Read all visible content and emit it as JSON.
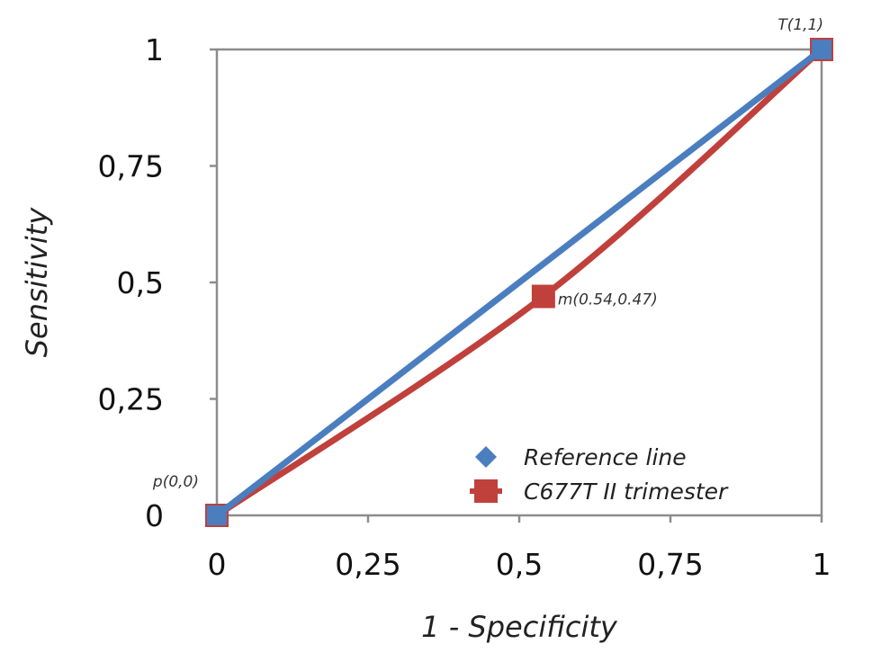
{
  "chart_data": {
    "type": "line",
    "title": "",
    "xlabel": "1 - Specificity",
    "ylabel": "Sensitivity",
    "xlim": [
      0,
      1
    ],
    "ylim": [
      0,
      1
    ],
    "x_ticks": [
      0,
      0.25,
      0.5,
      0.75,
      1
    ],
    "x_tick_labels": [
      "0",
      "0,25",
      "0,5",
      "0,75",
      "1"
    ],
    "y_ticks": [
      0,
      0.25,
      0.5,
      0.75,
      1
    ],
    "y_tick_labels": [
      "0",
      "0,25",
      "0,5",
      "0,75",
      "1"
    ],
    "grid": false,
    "legend_position": "bottom-right",
    "series": [
      {
        "name": "Reference line",
        "color": "#4a7ebf",
        "marker": "diamond",
        "points": [
          [
            0,
            0
          ],
          [
            1,
            1
          ]
        ]
      },
      {
        "name": "C677T II trimester",
        "color": "#c0403c",
        "marker": "square",
        "points": [
          [
            0,
            0
          ],
          [
            0.54,
            0.47
          ],
          [
            1,
            1
          ]
        ]
      }
    ],
    "annotations": [
      {
        "text": "p(0,0)",
        "x": 0,
        "y": 0
      },
      {
        "text": "m(0.54,0.47)",
        "x": 0.54,
        "y": 0.47
      },
      {
        "text": "T(1,1)",
        "x": 1,
        "y": 1
      }
    ]
  }
}
